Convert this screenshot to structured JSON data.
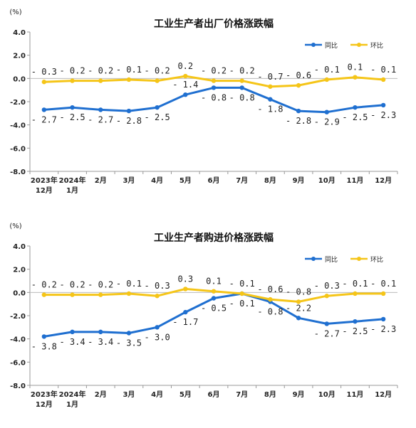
{
  "chart_data": [
    {
      "type": "line",
      "title": "工业生产者出厂价格涨跌幅",
      "yunit": "(%)",
      "ylim": [
        -8.0,
        4.0
      ],
      "yticks": [
        "4.0",
        "2.0",
        "0.0",
        "-2.0",
        "-4.0",
        "-6.0",
        "-8.0"
      ],
      "ytick_values": [
        4,
        2,
        0,
        -2,
        -4,
        -6,
        -8
      ],
      "categories": [
        "2023年|12月",
        "2024年|1月",
        "2月",
        "3月",
        "4月",
        "5月",
        "6月",
        "7月",
        "8月",
        "9月",
        "10月",
        "11月",
        "12月"
      ],
      "legend_position": "top-right",
      "series": [
        {
          "name": "同比",
          "color": "#1f6fd0",
          "values": [
            -2.7,
            -2.5,
            -2.7,
            -2.8,
            -2.5,
            -1.4,
            -0.8,
            -0.8,
            -1.8,
            -2.8,
            -2.9,
            -2.5,
            -2.3
          ],
          "labels": [
            "-2.7",
            "-2.5",
            "-2.7",
            "-2.8",
            "-2.5",
            "-1.4",
            "-0.8",
            "-0.8",
            "-1.8",
            "-2.8",
            "-2.9",
            "-2.5",
            "-2.3"
          ]
        },
        {
          "name": "环比",
          "color": "#f5c518",
          "values": [
            -0.3,
            -0.2,
            -0.2,
            -0.1,
            -0.2,
            0.2,
            -0.2,
            -0.2,
            -0.7,
            -0.6,
            -0.1,
            0.1,
            -0.1
          ],
          "labels": [
            "-0.3",
            "-0.2",
            "-0.2",
            "-0.1",
            "-0.2",
            "0.2",
            "-0.2",
            "-0.2",
            "-0.7",
            "-0.6",
            "-0.1",
            "0.1",
            "-0.1"
          ]
        }
      ]
    },
    {
      "type": "line",
      "title": "工业生产者购进价格涨跌幅",
      "yunit": "(%)",
      "ylim": [
        -8.0,
        4.0
      ],
      "yticks": [
        "4.0",
        "2.0",
        "0.0",
        "-2.0",
        "-4.0",
        "-6.0",
        "-8.0"
      ],
      "ytick_values": [
        4,
        2,
        0,
        -2,
        -4,
        -6,
        -8
      ],
      "categories": [
        "2023年|12月",
        "2024年|1月",
        "2月",
        "3月",
        "4月",
        "5月",
        "6月",
        "7月",
        "8月",
        "9月",
        "10月",
        "11月",
        "12月"
      ],
      "legend_position": "top-right",
      "series": [
        {
          "name": "同比",
          "color": "#1f6fd0",
          "values": [
            -3.8,
            -3.4,
            -3.4,
            -3.5,
            -3.0,
            -1.7,
            -0.5,
            -0.1,
            -0.8,
            -2.2,
            -2.7,
            -2.5,
            -2.3
          ],
          "labels": [
            "-3.8",
            "-3.4",
            "-3.4",
            "-3.5",
            "-3.0",
            "-1.7",
            "-0.5",
            "-0.1",
            "-0.8",
            "-2.2",
            "-2.7",
            "-2.5",
            "-2.3"
          ]
        },
        {
          "name": "环比",
          "color": "#f5c518",
          "values": [
            -0.2,
            -0.2,
            -0.2,
            -0.1,
            -0.3,
            0.3,
            0.1,
            -0.1,
            -0.6,
            -0.8,
            -0.3,
            -0.1,
            -0.1
          ],
          "labels": [
            "-0.2",
            "-0.2",
            "-0.2",
            "-0.1",
            "-0.3",
            "0.3",
            "0.1",
            "-0.1",
            "-0.6",
            "-0.8",
            "-0.3",
            "-0.1",
            "-0.1"
          ]
        }
      ]
    }
  ]
}
